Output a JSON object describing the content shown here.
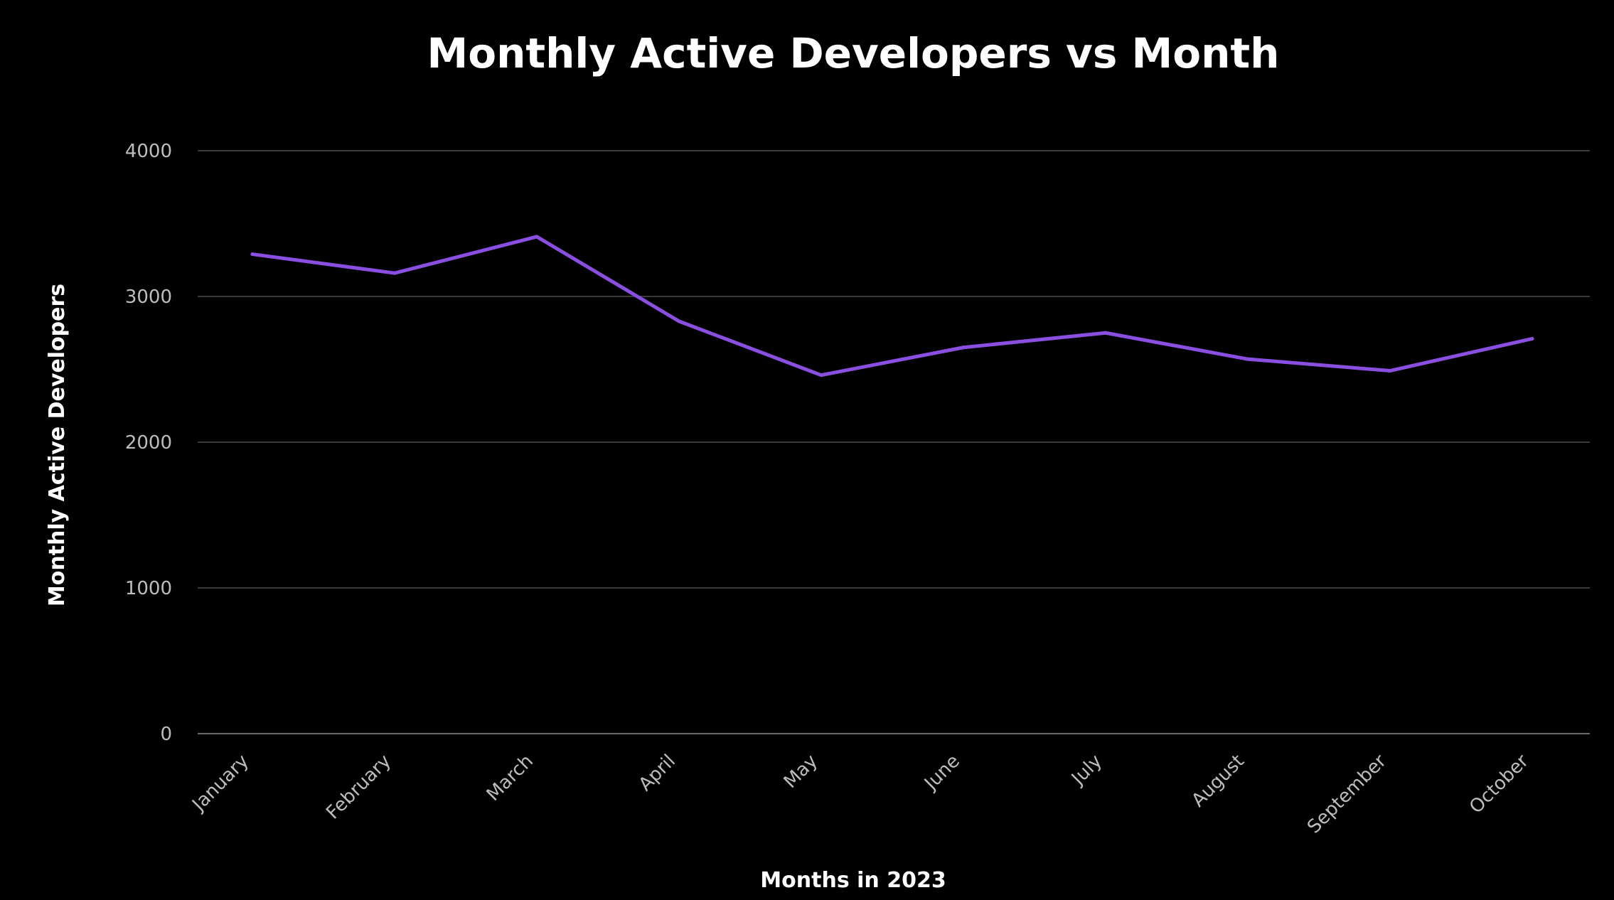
{
  "chart_data": {
    "type": "line",
    "title": "Monthly Active Developers vs Month",
    "xlabel": "Months in 2023",
    "ylabel": "Monthly Active Developers",
    "categories": [
      "January",
      "February",
      "March",
      "April",
      "May",
      "June",
      "July",
      "August",
      "September",
      "October"
    ],
    "series": [
      {
        "name": "Monthly Active Developers",
        "color": "#8a4fe0",
        "values": [
          3290,
          3160,
          3410,
          2830,
          2460,
          2650,
          2750,
          2570,
          2490,
          2710
        ]
      }
    ],
    "ylim": [
      0,
      4000
    ],
    "yticks": [
      "0",
      "1000",
      "2000",
      "3000",
      "4000"
    ],
    "grid": true
  }
}
